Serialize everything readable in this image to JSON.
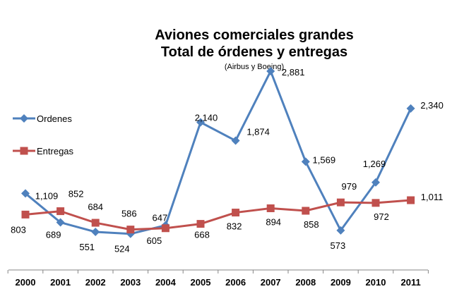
{
  "chart_data": {
    "type": "line",
    "title": "Aviones comerciales grandes",
    "title_line2": "Total de órdenes y entregas",
    "subtitle": "(Airbus y Boeing)",
    "xlabel": "",
    "ylabel": "",
    "ylim": [
      0,
      3000
    ],
    "grid": false,
    "legend_position": "left",
    "categories": [
      "2000",
      "2001",
      "2002",
      "2003",
      "2004",
      "2005",
      "2006",
      "2007",
      "2008",
      "2009",
      "2010",
      "2011"
    ],
    "series": [
      {
        "name": "Ordenes",
        "color": "#4f81bd",
        "marker": "diamond",
        "values": [
          1109,
          689,
          551,
          524,
          647,
          2140,
          1874,
          2881,
          1569,
          573,
          1269,
          2340
        ],
        "labels": [
          "1,109",
          "689",
          "551",
          "524",
          "647",
          "2,140",
          "1,874",
          "2,881",
          "1,569",
          "573",
          "1,269",
          "2,340"
        ]
      },
      {
        "name": "Entregas",
        "color": "#c0504d",
        "marker": "square",
        "values": [
          803,
          852,
          684,
          586,
          605,
          668,
          832,
          894,
          858,
          979,
          972,
          1011
        ],
        "labels": [
          "803",
          "852",
          "684",
          "586",
          "605",
          "668",
          "832",
          "894",
          "858",
          "979",
          "972",
          "1,011"
        ]
      }
    ]
  }
}
